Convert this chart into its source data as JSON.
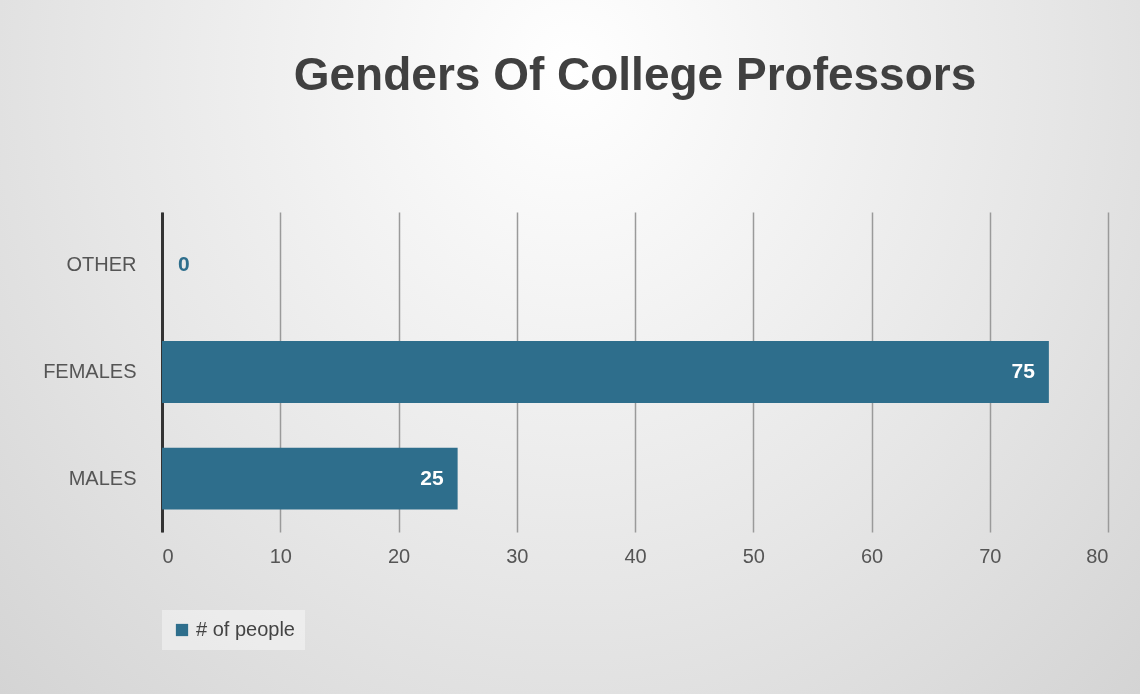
{
  "chart_data": {
    "type": "bar",
    "orientation": "horizontal",
    "title": "Genders Of  College Professors",
    "categories": [
      "OTHER",
      "FEMALES",
      "MALES"
    ],
    "series": [
      {
        "name": "# of people",
        "color": "#2e6e8c",
        "values": [
          0,
          75,
          25
        ]
      }
    ],
    "xlim": [
      0,
      80
    ],
    "xticks": [
      0,
      10,
      20,
      30,
      40,
      50,
      60,
      70,
      80
    ],
    "grid": "x",
    "legend": "bottom",
    "data_labels": true
  }
}
